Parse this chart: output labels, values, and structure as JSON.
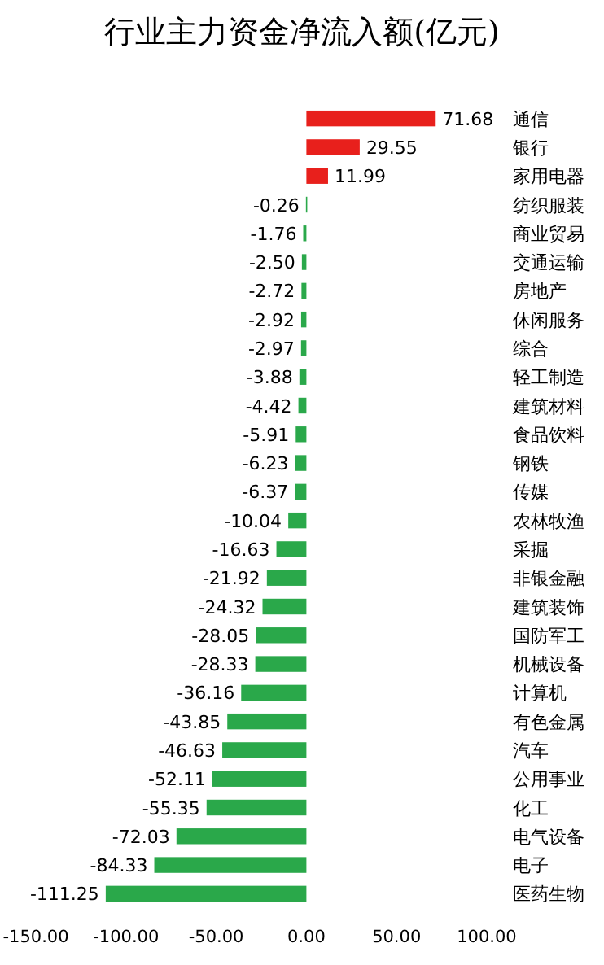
{
  "chart_data": {
    "type": "bar",
    "orientation": "horizontal",
    "title": "行业主力资金净流入额(亿元)",
    "categories": [
      "通信",
      "银行",
      "家用电器",
      "纺织服装",
      "商业贸易",
      "交通运输",
      "房地产",
      "休闲服务",
      "综合",
      "轻工制造",
      "建筑材料",
      "食品饮料",
      "钢铁",
      "传媒",
      "农林牧渔",
      "采掘",
      "非银金融",
      "建筑装饰",
      "国防军工",
      "机械设备",
      "计算机",
      "有色金属",
      "汽车",
      "公用事业",
      "化工",
      "电气设备",
      "电子",
      "医药生物"
    ],
    "values": [
      71.68,
      29.55,
      11.99,
      -0.26,
      -1.76,
      -2.5,
      -2.72,
      -2.92,
      -2.97,
      -3.88,
      -4.42,
      -5.91,
      -6.23,
      -6.37,
      -10.04,
      -16.63,
      -21.92,
      -24.32,
      -28.05,
      -28.33,
      -36.16,
      -43.85,
      -46.63,
      -52.11,
      -55.35,
      -72.03,
      -84.33,
      -111.25
    ],
    "colors": [
      "#e8201c",
      "#e8201c",
      "#e8201c",
      "#2aa84a",
      "#2aa84a",
      "#2aa84a",
      "#2aa84a",
      "#2aa84a",
      "#2aa84a",
      "#2aa84a",
      "#2aa84a",
      "#2aa84a",
      "#2aa84a",
      "#2aa84a",
      "#2aa84a",
      "#2aa84a",
      "#2aa84a",
      "#2aa84a",
      "#2aa84a",
      "#2aa84a",
      "#2aa84a",
      "#2aa84a",
      "#2aa84a",
      "#2aa84a",
      "#2aa84a",
      "#2aa84a",
      "#2aa84a",
      "#2aa84a"
    ],
    "value_labels": [
      "71.68",
      "29.55",
      "11.99",
      "-0.26",
      "-1.76",
      "-2.50",
      "-2.72",
      "-2.92",
      "-2.97",
      "-3.88",
      "-4.42",
      "-5.91",
      "-6.23",
      "-6.37",
      "-10.04",
      "-16.63",
      "-21.92",
      "-24.32",
      "-28.05",
      "-28.33",
      "-36.16",
      "-43.85",
      "-46.63",
      "-52.11",
      "-55.35",
      "-72.03",
      "-84.33",
      "-111.25"
    ],
    "xlim": [
      -150,
      100
    ],
    "xticks": [
      {
        "value": -150,
        "label": "-150.00"
      },
      {
        "value": -100,
        "label": "-100.00"
      },
      {
        "value": -50,
        "label": "-50.00"
      },
      {
        "value": 0,
        "label": "0.00"
      },
      {
        "value": 50,
        "label": "50.00"
      },
      {
        "value": 100,
        "label": "100.00"
      }
    ],
    "grid": false
  }
}
